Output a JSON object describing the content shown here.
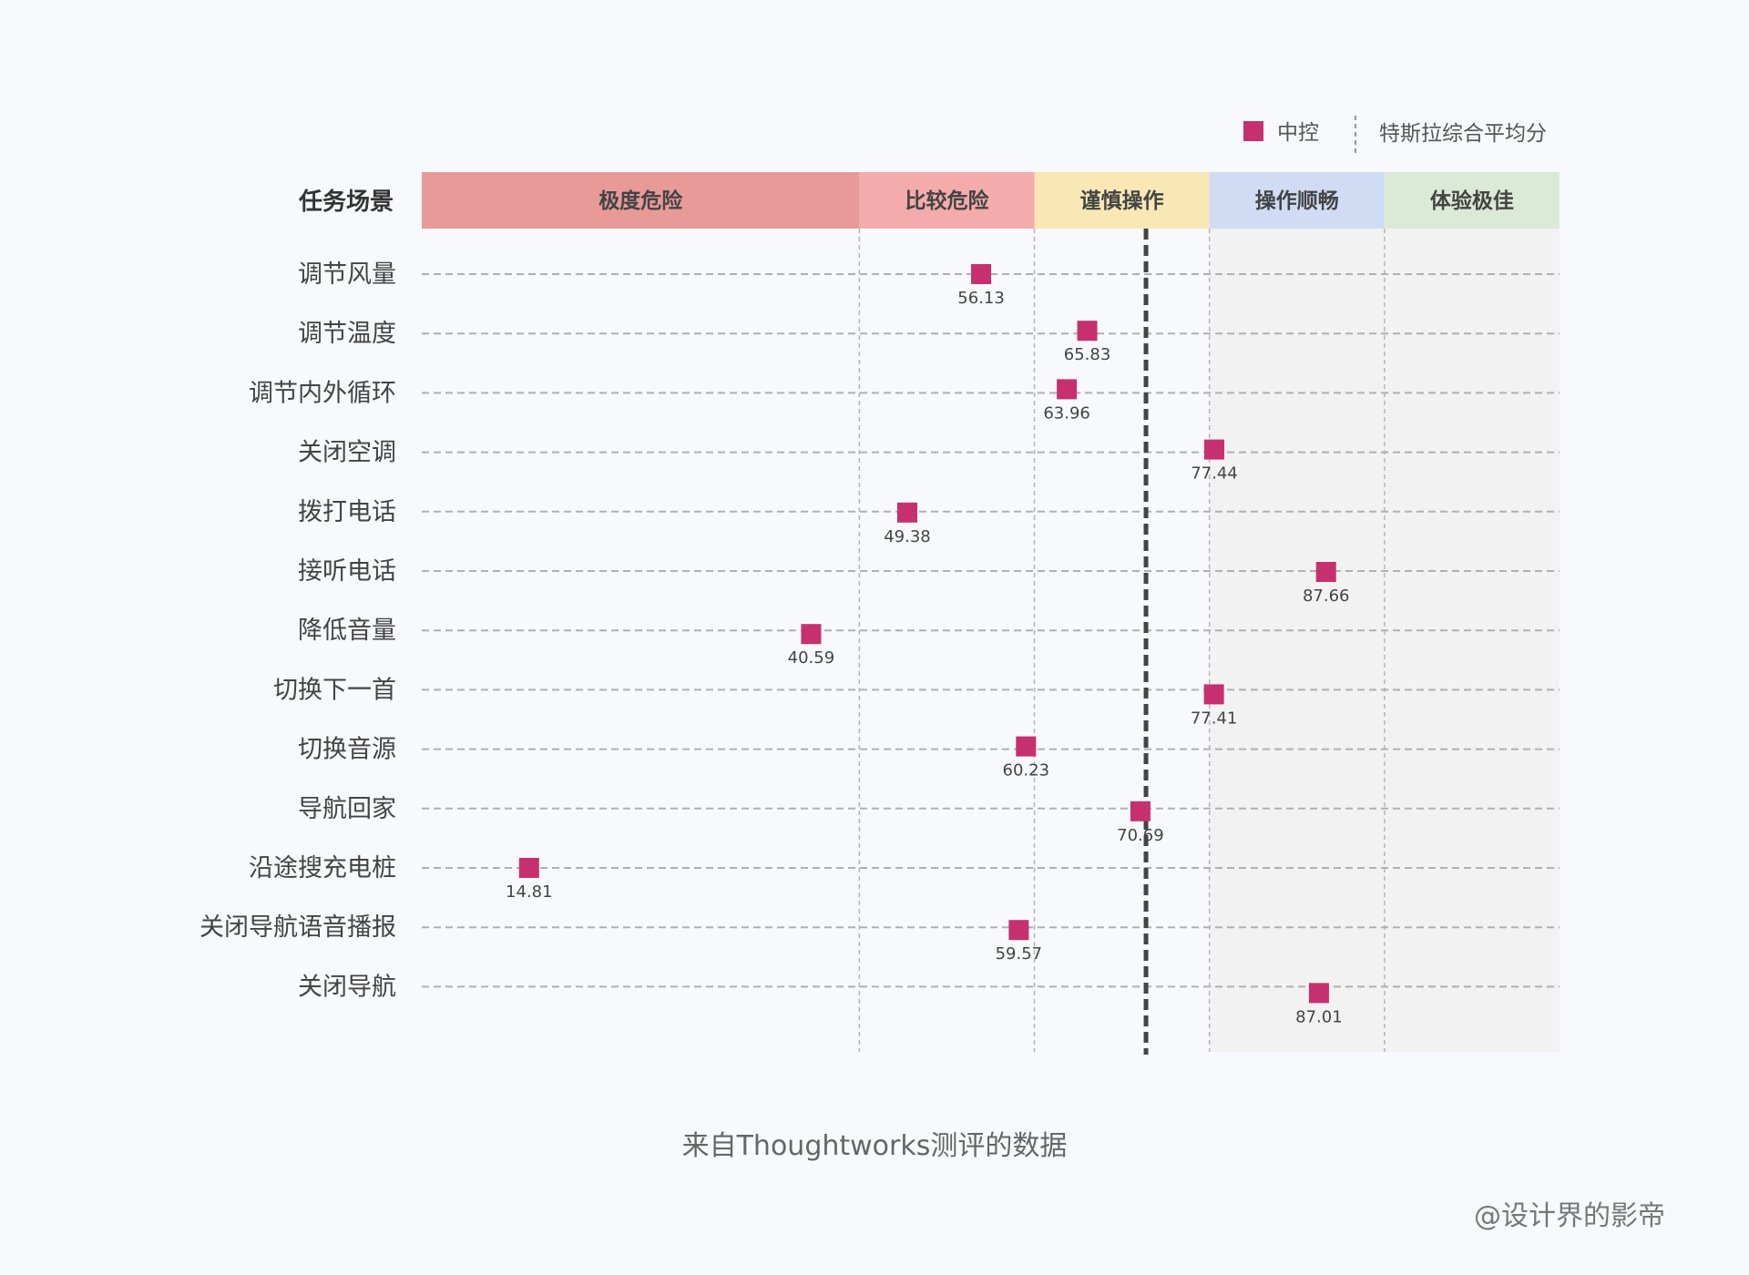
{
  "legend": {
    "series_label": "中控",
    "baseline_label": "特斯拉综合平均分"
  },
  "header_label": "任务场景",
  "caption": "来自Thoughtworks测评的数据",
  "credit": "@设计界的影帝",
  "colors": {
    "marker": "#c7306e",
    "baseline": "#444444",
    "zone_extreme": "#e79a98",
    "zone_risky": "#f3abab",
    "zone_careful": "#f9e8b6",
    "zone_smooth": "#cfdcf4",
    "zone_best": "#dce9d6",
    "zone_shade": "#f2f2f3"
  },
  "chart_data": {
    "type": "scatter",
    "zones": [
      {
        "label": "极度危险",
        "from": 5,
        "to": 45
      },
      {
        "label": "比较危险",
        "from": 45,
        "to": 61
      },
      {
        "label": "谨慎操作",
        "from": 61,
        "to": 77
      },
      {
        "label": "操作顺畅",
        "from": 77,
        "to": 93
      },
      {
        "label": "体验极佳",
        "from": 93,
        "to": 109
      }
    ],
    "xlim": [
      5,
      109
    ],
    "baseline": 71.2,
    "categories": [
      "调节风量",
      "调节温度",
      "调节内外循环",
      "关闭空调",
      "拨打电话",
      "接听电话",
      "降低音量",
      "切换下一首",
      "切换音源",
      "导航回家",
      "沿途搜充电桩",
      "关闭导航语音播报",
      "关闭导航"
    ],
    "series": [
      {
        "name": "中控",
        "values": [
          56.13,
          65.83,
          63.96,
          77.44,
          49.38,
          87.66,
          40.59,
          77.41,
          60.23,
          70.69,
          14.81,
          59.57,
          87.01
        ]
      }
    ]
  }
}
